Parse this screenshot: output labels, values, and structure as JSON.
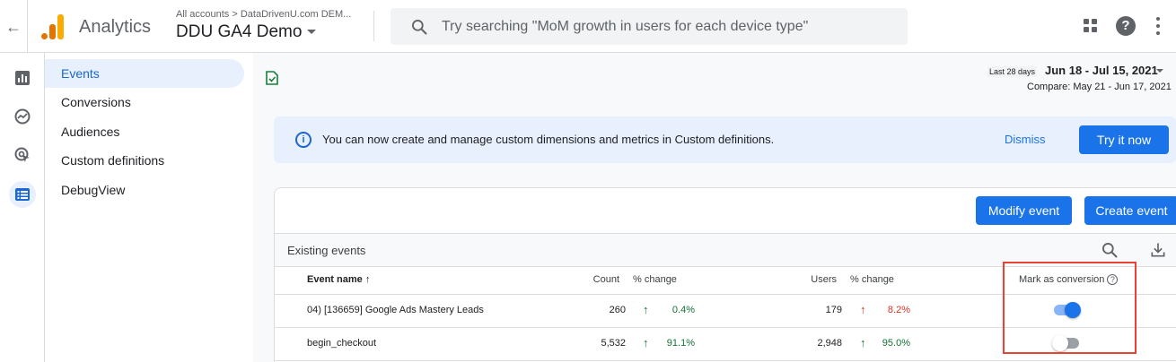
{
  "header": {
    "app_name": "Analytics",
    "account_crumb": "All accounts > DataDrivenU.com DEM...",
    "property_name": "DDU GA4 Demo",
    "search_placeholder": "Try searching \"MoM growth in users for each device type\""
  },
  "subnav": {
    "items": [
      {
        "label": "Events",
        "active": true
      },
      {
        "label": "Conversions",
        "active": false
      },
      {
        "label": "Audiences",
        "active": false
      },
      {
        "label": "Custom definitions",
        "active": false
      },
      {
        "label": "DebugView",
        "active": false
      }
    ]
  },
  "date_range": {
    "preset": "Last 28 days",
    "range": "Jun 18 - Jul 15, 2021",
    "compare": "Compare: May 21 - Jun 17, 2021"
  },
  "banner": {
    "text": "You can now create and manage custom dimensions and metrics in Custom definitions.",
    "dismiss": "Dismiss",
    "try": "Try it now"
  },
  "card": {
    "modify_label": "Modify event",
    "create_label": "Create event",
    "section_title": "Existing events",
    "columns": {
      "event_name": "Event name",
      "count": "Count",
      "count_change": "% change",
      "users": "Users",
      "users_change": "% change",
      "mark_conversion": "Mark as conversion"
    },
    "rows": [
      {
        "name": "04) [136659] Google Ads Mastery Leads",
        "count": "260",
        "count_change": "0.4%",
        "count_dir": "up",
        "users": "179",
        "users_change": "8.2%",
        "users_dir": "up",
        "conversion": true
      },
      {
        "name": "begin_checkout",
        "count": "5,532",
        "count_change": "91.1%",
        "count_dir": "up",
        "users": "2,948",
        "users_change": "95.0%",
        "users_dir": "up",
        "conversion": false
      }
    ]
  },
  "colors": {
    "accent": "#1a73e8",
    "positive": "#137333",
    "negative": "#d93025",
    "highlight": "#ea4335"
  }
}
